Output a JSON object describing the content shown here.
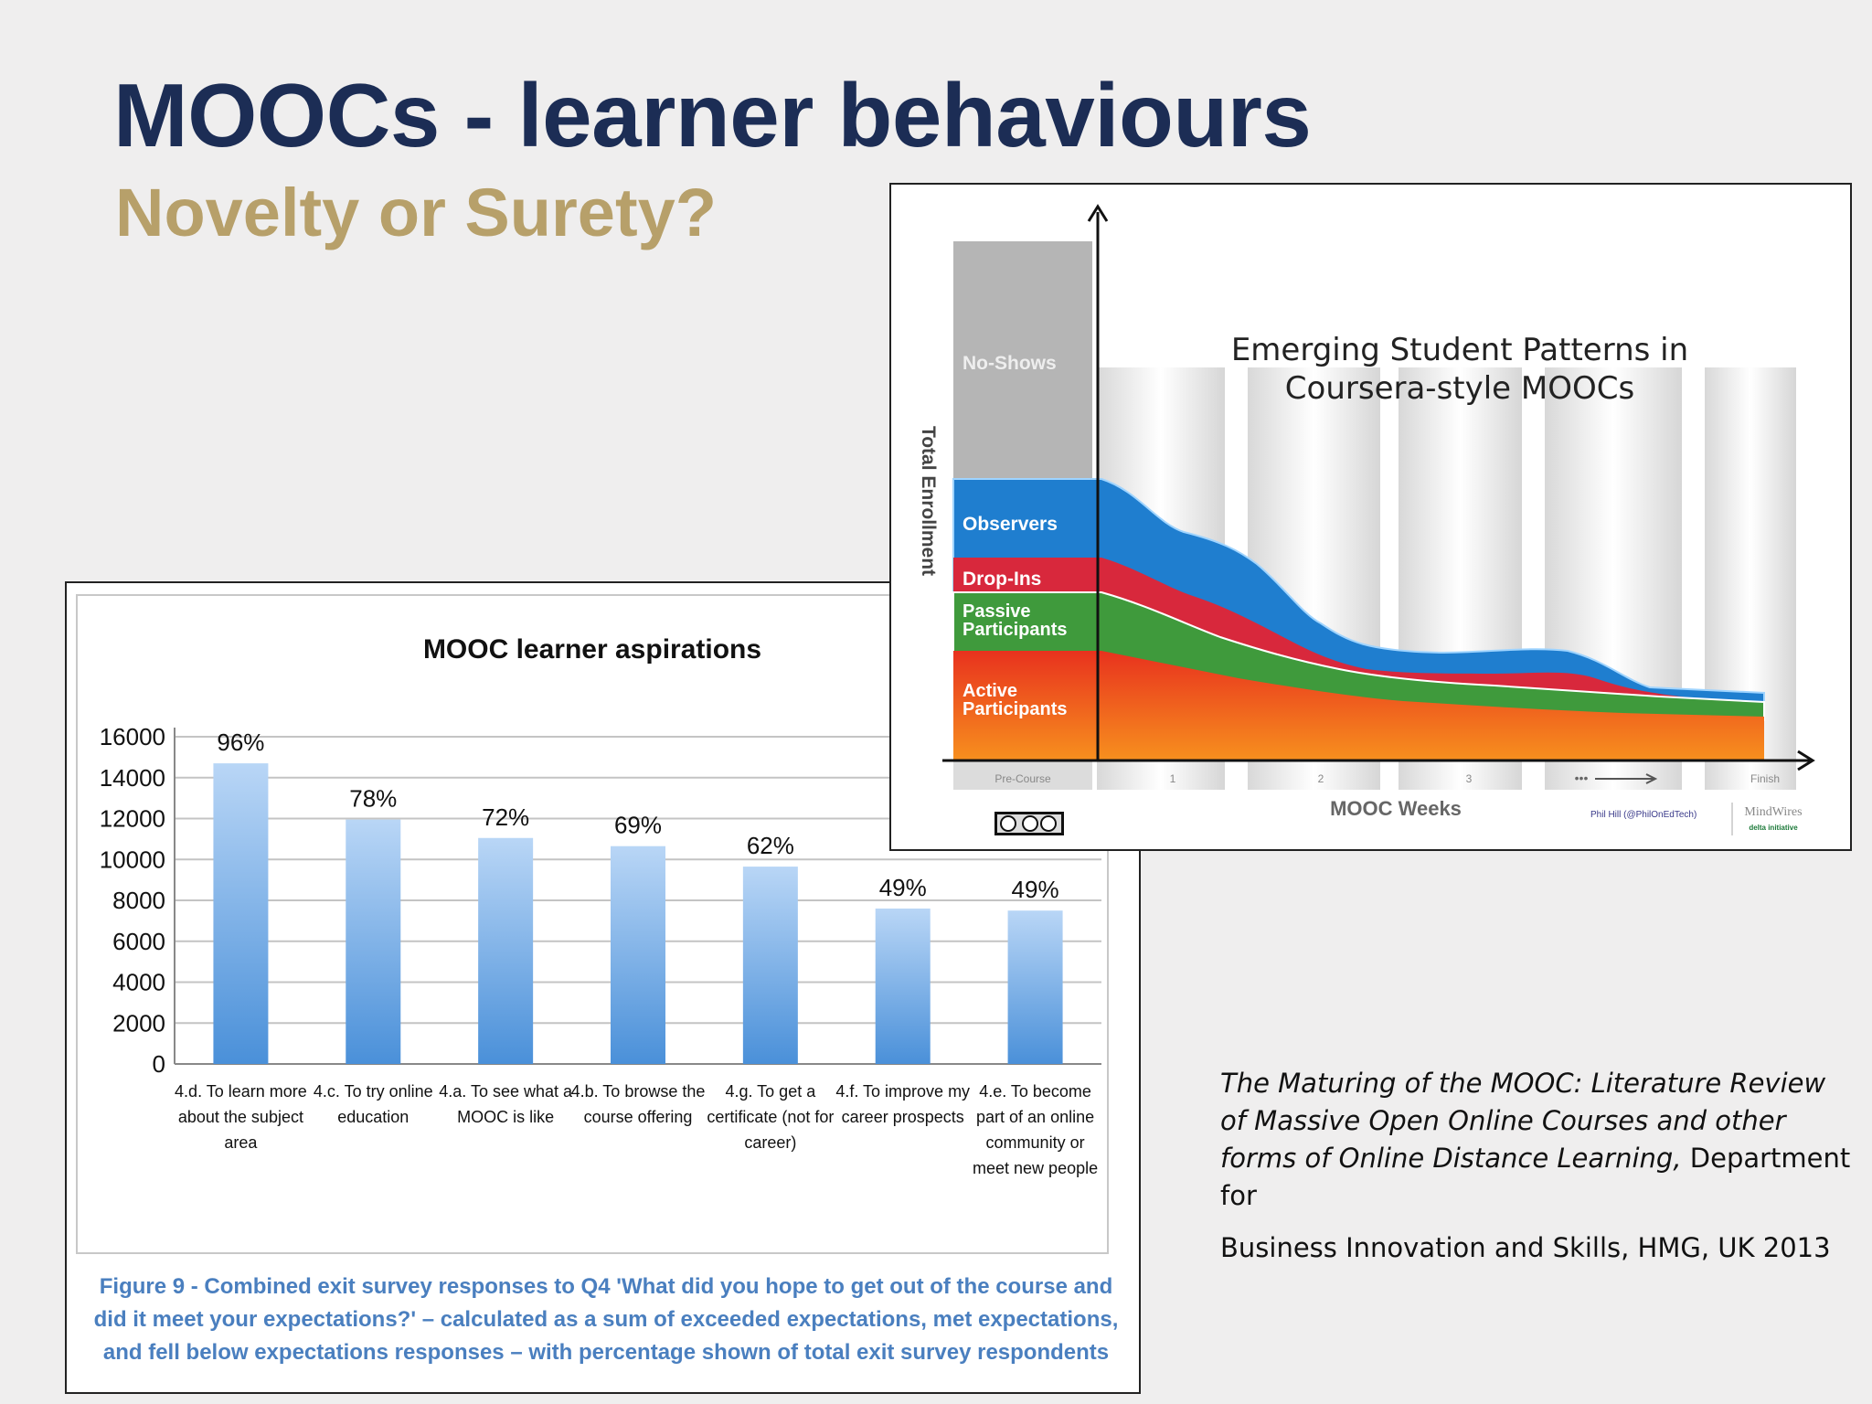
{
  "slide": {
    "title": "MOOCs - learner behaviours",
    "subtitle": "Novelty or Surety?"
  },
  "citation": {
    "italic": "The Maturing of the MOOC: Literature Review of Massive Open Online Courses and other forms of Online Distance Learning,",
    "normal": "Department for",
    "line2": "Business Innovation and Skills, HMG, UK 2013"
  },
  "bar_caption": "Figure 9 - Combined exit survey responses to Q4 'What did you hope to get out of the course and did it meet your expectations?' – calculated as a sum of exceeded expectations, met expectations, and fell below expectations responses – with percentage shown of total exit survey respondents",
  "colors": {
    "title": "#1c2d55",
    "subtitle": "#b7a06a",
    "bar_top": "#b9d6f6",
    "bar_bottom": "#4a90d9",
    "no_shows": "#b5b5b5",
    "observers": "#1f7ecf",
    "drop_ins": "#d8283c",
    "passive": "#3f9a3c",
    "active_top": "#e8321e",
    "active_bottom": "#f7901e"
  },
  "chart_data": [
    {
      "type": "bar",
      "title": "MOOC learner aspirations",
      "categories": [
        [
          "4.d. To learn more",
          "about the subject",
          "area"
        ],
        [
          "4.c. To try online",
          "education"
        ],
        [
          "4.a. To see what a",
          "MOOC is like"
        ],
        [
          "4.b. To browse the",
          "course offering"
        ],
        [
          "4.g. To get a",
          "certificate (not for",
          "career)"
        ],
        [
          "4.f. To improve my",
          "career prospects"
        ],
        [
          "4.e. To become",
          "part of an online",
          "community or",
          "meet new people"
        ]
      ],
      "values": [
        14700,
        11950,
        11050,
        10650,
        9650,
        7600,
        7500
      ],
      "data_labels": [
        "96%",
        "78%",
        "72%",
        "69%",
        "62%",
        "49%",
        "49%"
      ],
      "yticks": [
        "0",
        "2000",
        "4000",
        "6000",
        "8000",
        "10000",
        "12000",
        "14000",
        "16000"
      ],
      "ylim": [
        0,
        16000
      ],
      "grid": true
    },
    {
      "type": "area",
      "title": [
        "Emerging Student Patterns in",
        "Coursera-style MOOCs"
      ],
      "xlabel": "MOOC Weeks",
      "ylabel": "Total Enrollment",
      "x_ticks": [
        "Pre-Course",
        "1",
        "2",
        "3",
        "Finish"
      ],
      "x_arrow_label": "•••",
      "bands": [
        "No-Shows",
        "Observers",
        "Drop-Ins",
        "Passive Participants",
        "Active Participants"
      ],
      "legend_labels": [
        "No-Shows",
        "Observers",
        "Drop-Ins",
        "Passive",
        "Participants",
        "Active",
        "Participants"
      ],
      "credit": "Phil Hill (@PhilOnEdTech)",
      "logo_text": "MindWires",
      "logo_sub": "delta initiative",
      "license_text": "cc by sa"
    }
  ]
}
